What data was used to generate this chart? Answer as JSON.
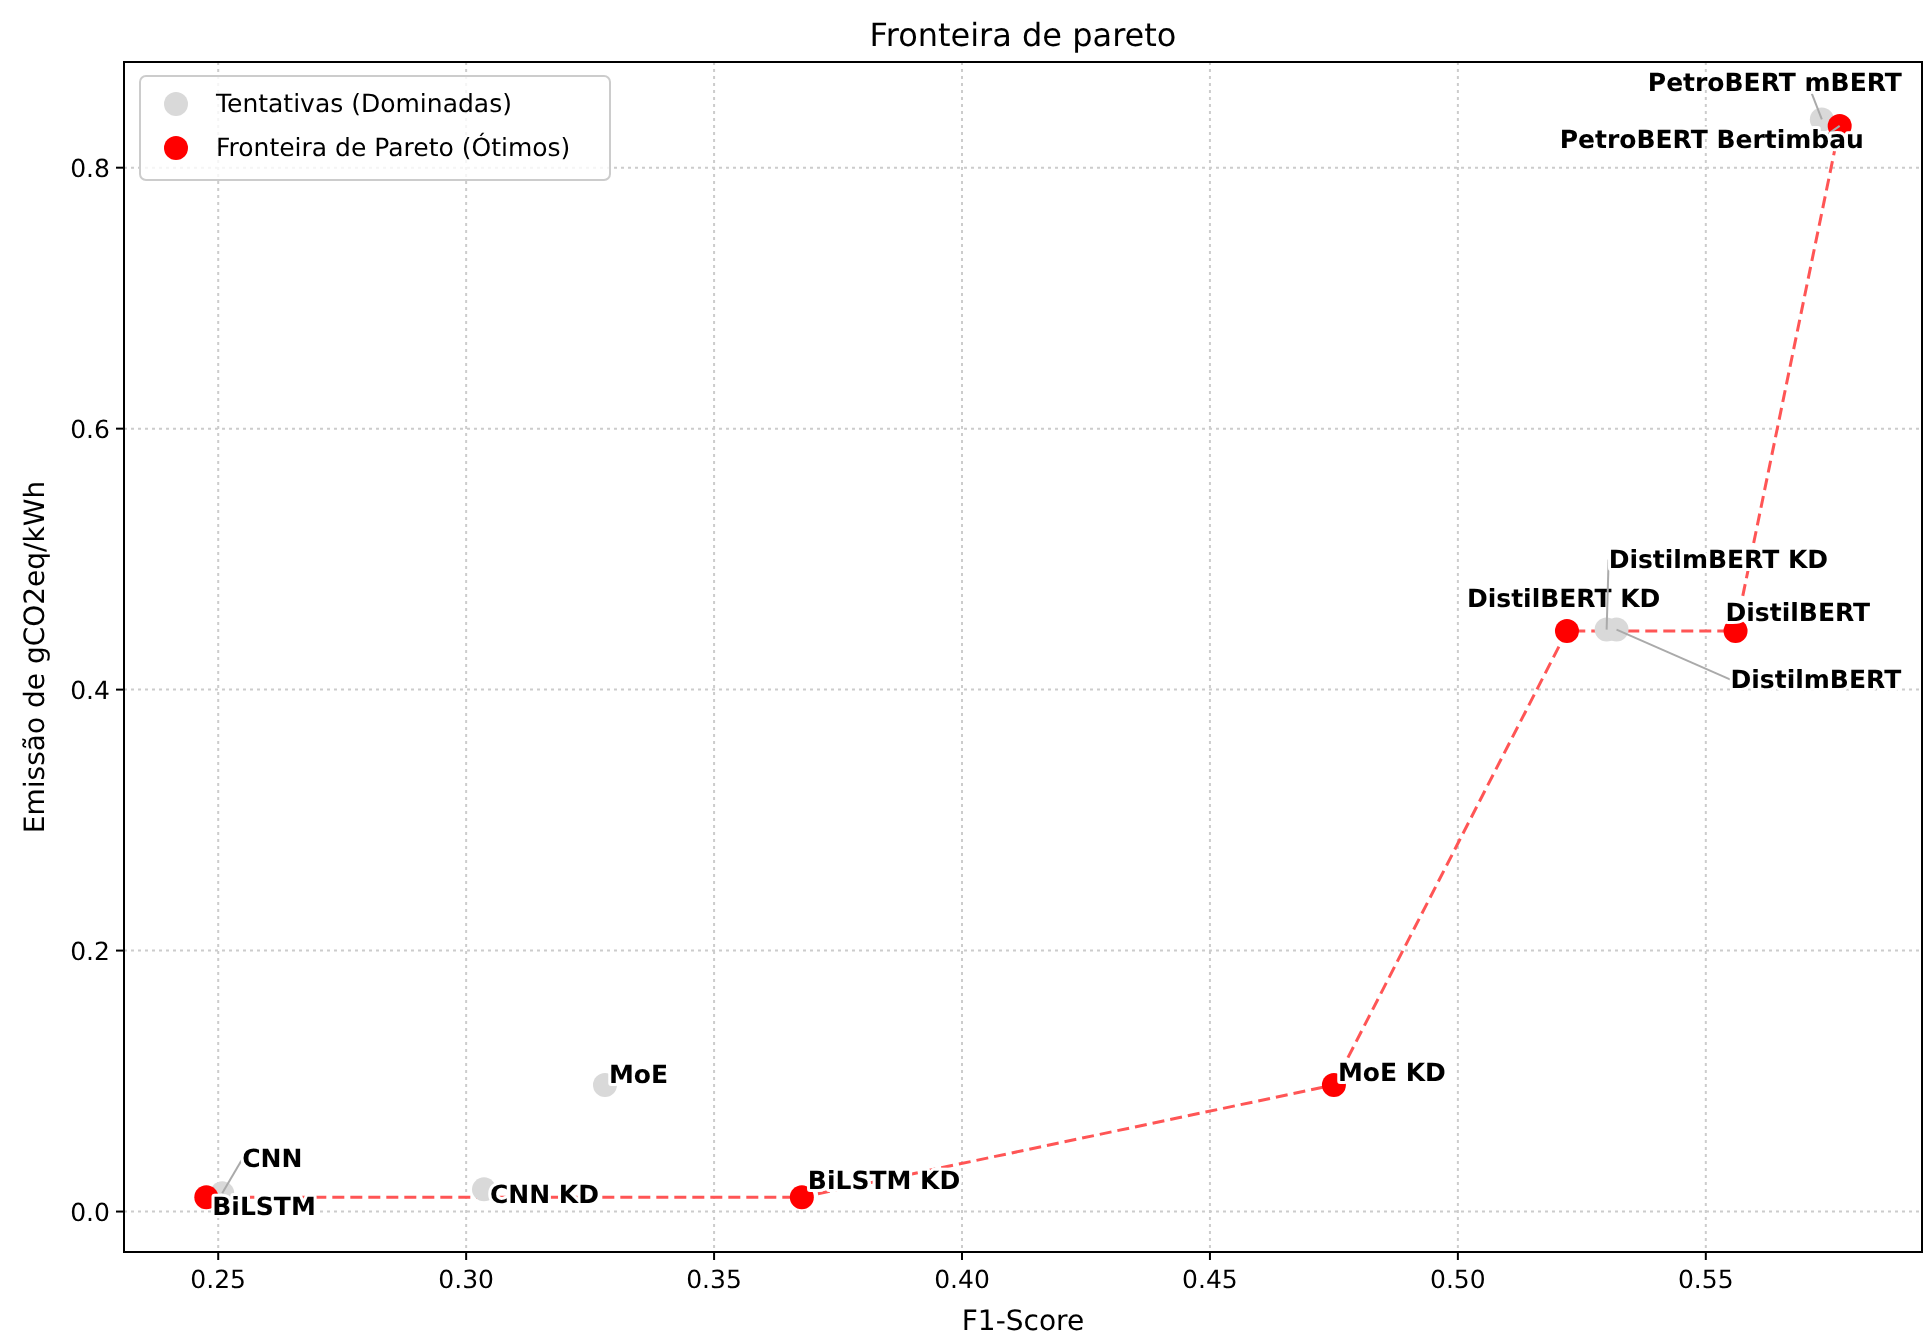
{
  "chart_data": {
    "type": "scatter",
    "title": "Fronteira de pareto",
    "xlabel": "F1-Score",
    "ylabel": "Emissão de gCO2eq/kWh",
    "xlim": [
      0.231,
      0.5936
    ],
    "ylim": [
      -0.031,
      0.881
    ],
    "xticks": [
      0.25,
      {
        "value": 0.3,
        "label": "0.30"
      },
      0.35,
      {
        "value": 0.4,
        "label": "0.40"
      },
      0.45,
      {
        "value": 0.5,
        "label": "0.50"
      },
      0.55
    ],
    "yticks": [
      {
        "value": 0,
        "label": "0.0"
      },
      0.2,
      0.4,
      0.6,
      0.8
    ],
    "grid": true,
    "legend": "top left",
    "marker": "circle",
    "series": [
      {
        "type": "line",
        "color": "#ff5555",
        "line_style": "dashed",
        "marker": "none",
        "x": [
          0.2476,
          0.3677,
          0.475,
          0.522,
          0.556,
          0.577
        ],
        "values": [
          0.011,
          0.011,
          0.097,
          0.445,
          0.445,
          0.832
        ]
      },
      {
        "name": "Tentativas (Dominadas)",
        "color": "#d9d9d9",
        "x": [
          0.2508,
          0.3036,
          0.328,
          0.53,
          0.532,
          0.5734
        ],
        "values": [
          0.014,
          0.017,
          0.097,
          0.446,
          0.446,
          0.837
        ]
      },
      {
        "name": "Fronteira de Pareto (Ótimos)",
        "color": "#ff0000",
        "x": [
          0.2476,
          0.3677,
          0.475,
          0.522,
          0.556,
          0.577
        ],
        "values": [
          0.011,
          0.011,
          0.097,
          0.445,
          0.445,
          0.832
        ]
      }
    ],
    "annotations": [
      {
        "text": "CNN",
        "x": 0.2508,
        "y": 0.014
      },
      {
        "text": "BiLSTM",
        "x": 0.2476,
        "y": 0.011
      },
      {
        "text": "CNN KD",
        "x": 0.3036,
        "y": 0.017
      },
      {
        "text": "BiLSTM KD",
        "x": 0.3677,
        "y": 0.011
      },
      {
        "text": "MoE",
        "x": 0.328,
        "y": 0.097
      },
      {
        "text": "MoE KD",
        "x": 0.475,
        "y": 0.097
      },
      {
        "text": "DistilBERT KD",
        "x": 0.522,
        "y": 0.445
      },
      {
        "text": "DistilmBERT KD",
        "x": 0.53,
        "y": 0.446
      },
      {
        "text": "DistilBERT",
        "x": 0.556,
        "y": 0.445
      },
      {
        "text": "DistilmBERT",
        "x": 0.532,
        "y": 0.446
      },
      {
        "text": "PetroBERT mBERT",
        "x": 0.5734,
        "y": 0.837
      },
      {
        "text": "PetroBERT Bertimbau",
        "x": 0.577,
        "y": 0.832
      }
    ]
  }
}
